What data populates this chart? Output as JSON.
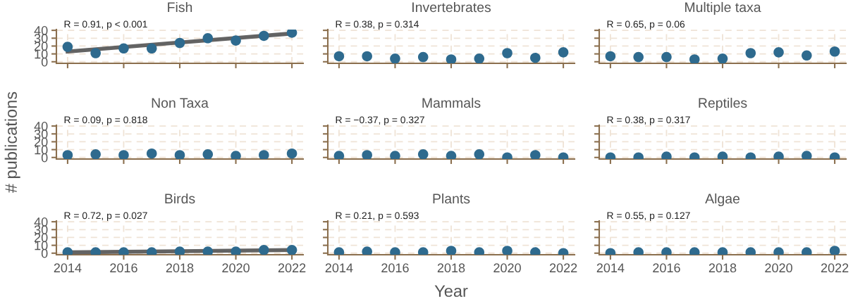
{
  "chart_data": [
    {
      "type": "scatter",
      "title": "Fish",
      "annotations": [
        "R = 0.91, p < 0.001"
      ],
      "xlim": [
        2013.6,
        2022.4
      ],
      "xticks": [
        2014,
        2016,
        2018,
        2020,
        2022
      ],
      "ylim": [
        -2,
        41
      ],
      "yticks": [
        0,
        10,
        20,
        30,
        40
      ],
      "tick_labels": "y",
      "grid": true,
      "marker": "circle",
      "series": [
        {
          "type": "scatter",
          "color": "#2e6a8e",
          "x": [
            2014,
            2015,
            2016,
            2017,
            2018,
            2019,
            2020,
            2021,
            2022
          ],
          "values": [
            19,
            11,
            17,
            17,
            24,
            30,
            27,
            33,
            37
          ]
        },
        {
          "type": "line",
          "marker": "none",
          "color": "#636363",
          "x": [
            2014,
            2022
          ],
          "values": [
            13,
            36
          ]
        }
      ]
    },
    {
      "type": "scatter",
      "title": "Invertebrates",
      "annotations": [
        "R = 0.38, p = 0.314"
      ],
      "xlim": [
        2013.6,
        2022.4
      ],
      "xticks": [
        2014,
        2016,
        2018,
        2020,
        2022
      ],
      "ylim": [
        -2,
        41
      ],
      "yticks": [
        0,
        10,
        20,
        30,
        40
      ],
      "tick_labels": false,
      "grid": true,
      "marker": "circle",
      "series": [
        {
          "type": "scatter",
          "color": "#2e6a8e",
          "x": [
            2014,
            2015,
            2016,
            2017,
            2018,
            2019,
            2020,
            2021,
            2022
          ],
          "values": [
            7,
            7,
            4,
            6,
            3,
            4,
            11,
            5,
            12
          ]
        }
      ]
    },
    {
      "type": "scatter",
      "title": "Multiple taxa",
      "annotations": [
        "R = 0.65, p = 0.06"
      ],
      "xlim": [
        2013.6,
        2022.4
      ],
      "xticks": [
        2014,
        2016,
        2018,
        2020,
        2022
      ],
      "ylim": [
        -2,
        41
      ],
      "yticks": [
        0,
        10,
        20,
        30,
        40
      ],
      "tick_labels": false,
      "grid": true,
      "marker": "circle",
      "series": [
        {
          "type": "scatter",
          "color": "#2e6a8e",
          "x": [
            2014,
            2015,
            2016,
            2017,
            2018,
            2019,
            2020,
            2021,
            2022
          ],
          "values": [
            7,
            6,
            6,
            3,
            4,
            11,
            12,
            8,
            13
          ]
        }
      ]
    },
    {
      "type": "scatter",
      "title": "Non Taxa",
      "ylabel": "# publications",
      "annotations": [
        "R = 0.09, p = 0.818"
      ],
      "xlim": [
        2013.6,
        2022.4
      ],
      "xticks": [
        2014,
        2016,
        2018,
        2020,
        2022
      ],
      "ylim": [
        -2,
        41
      ],
      "yticks": [
        0,
        10,
        20,
        30,
        40
      ],
      "tick_labels": "y",
      "grid": true,
      "marker": "circle",
      "series": [
        {
          "type": "scatter",
          "color": "#2e6a8e",
          "x": [
            2014,
            2015,
            2016,
            2017,
            2018,
            2019,
            2020,
            2021,
            2022
          ],
          "values": [
            3,
            4,
            3,
            5,
            3,
            4,
            2,
            3,
            5
          ]
        }
      ]
    },
    {
      "type": "scatter",
      "title": "Mammals",
      "annotations": [
        "R = −0.37, p = 0.327"
      ],
      "xlim": [
        2013.6,
        2022.4
      ],
      "xticks": [
        2014,
        2016,
        2018,
        2020,
        2022
      ],
      "ylim": [
        -2,
        41
      ],
      "yticks": [
        0,
        10,
        20,
        30,
        40
      ],
      "tick_labels": false,
      "grid": true,
      "marker": "circle",
      "series": [
        {
          "type": "scatter",
          "color": "#2e6a8e",
          "x": [
            2014,
            2015,
            2016,
            2017,
            2018,
            2019,
            2020,
            2021,
            2022
          ],
          "values": [
            2,
            3,
            2,
            4,
            2,
            4,
            0,
            3,
            0
          ]
        }
      ]
    },
    {
      "type": "scatter",
      "title": "Reptiles",
      "annotations": [
        "R = 0.38, p = 0.317"
      ],
      "xlim": [
        2013.6,
        2022.4
      ],
      "xticks": [
        2014,
        2016,
        2018,
        2020,
        2022
      ],
      "ylim": [
        -2,
        41
      ],
      "yticks": [
        0,
        10,
        20,
        30,
        40
      ],
      "tick_labels": false,
      "grid": true,
      "marker": "circle",
      "series": [
        {
          "type": "scatter",
          "color": "#2e6a8e",
          "x": [
            2014,
            2015,
            2016,
            2017,
            2018,
            2019,
            2020,
            2021,
            2022
          ],
          "values": [
            0,
            0,
            1,
            0,
            1,
            0,
            1,
            2,
            0
          ]
        }
      ]
    },
    {
      "type": "scatter",
      "title": "Birds",
      "annotations": [
        "R = 0.72, p = 0.027"
      ],
      "xlim": [
        2013.6,
        2022.4
      ],
      "xticks": [
        2014,
        2016,
        2018,
        2020,
        2022
      ],
      "ylim": [
        -2,
        41
      ],
      "yticks": [
        0,
        10,
        20,
        30,
        40
      ],
      "grid": true,
      "marker": "circle",
      "series": [
        {
          "type": "scatter",
          "color": "#2e6a8e",
          "x": [
            2014,
            2015,
            2016,
            2017,
            2018,
            2019,
            2020,
            2021,
            2022
          ],
          "values": [
            1,
            1,
            1,
            1,
            2,
            2,
            2,
            4,
            4
          ]
        },
        {
          "type": "line",
          "marker": "none",
          "color": "#636363",
          "x": [
            2014,
            2022
          ],
          "values": [
            1,
            4
          ]
        }
      ]
    },
    {
      "type": "scatter",
      "title": "Plants",
      "xlabel": "Year",
      "annotations": [
        "R = 0.21, p = 0.593"
      ],
      "xlim": [
        2013.6,
        2022.4
      ],
      "xticks": [
        2014,
        2016,
        2018,
        2020,
        2022
      ],
      "ylim": [
        -2,
        41
      ],
      "yticks": [
        0,
        10,
        20,
        30,
        40
      ],
      "tick_labels": "x",
      "grid": true,
      "marker": "circle",
      "series": [
        {
          "type": "scatter",
          "color": "#2e6a8e",
          "x": [
            2014,
            2015,
            2016,
            2017,
            2018,
            2019,
            2020,
            2021,
            2022
          ],
          "values": [
            1,
            2,
            1,
            1,
            3,
            1,
            3,
            1,
            0
          ]
        }
      ]
    },
    {
      "type": "scatter",
      "title": "Algae",
      "annotations": [
        "R = 0.55, p = 0.127"
      ],
      "xlim": [
        2013.6,
        2022.4
      ],
      "xticks": [
        2014,
        2016,
        2018,
        2020,
        2022
      ],
      "ylim": [
        -2,
        41
      ],
      "yticks": [
        0,
        10,
        20,
        30,
        40
      ],
      "tick_labels": "x",
      "grid": true,
      "marker": "circle",
      "series": [
        {
          "type": "scatter",
          "color": "#2e6a8e",
          "x": [
            2014,
            2015,
            2016,
            2017,
            2018,
            2019,
            2020,
            2021,
            2022
          ],
          "values": [
            0,
            1,
            1,
            1,
            1,
            1,
            1,
            1,
            3
          ]
        }
      ]
    }
  ]
}
